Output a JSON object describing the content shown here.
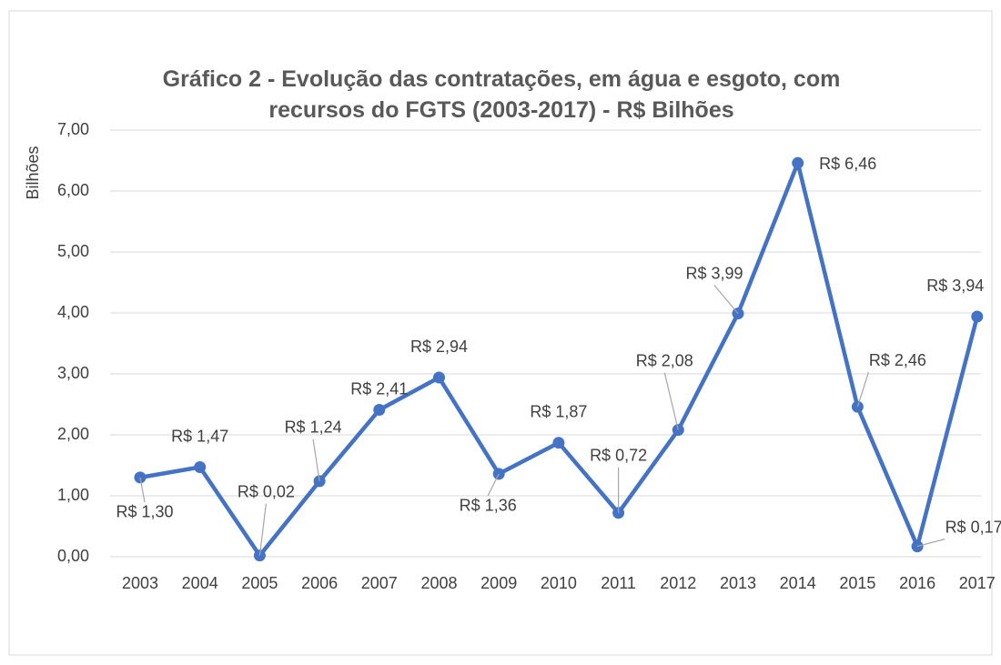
{
  "chart_data": {
    "type": "line",
    "title": "Gráfico 2 - Evolução das contratações, em água e esgoto, com recursos do FGTS (2003-2017) - R$ Bilhões",
    "y_label": "Bilhões",
    "categories": [
      "2003",
      "2004",
      "2005",
      "2006",
      "2007",
      "2008",
      "2009",
      "2010",
      "2011",
      "2012",
      "2013",
      "2014",
      "2015",
      "2016",
      "2017"
    ],
    "series": [
      {
        "name": "Contratações",
        "color": "#4472c4",
        "values": [
          1.3,
          1.47,
          0.02,
          1.24,
          2.41,
          2.94,
          1.36,
          1.87,
          0.72,
          2.08,
          3.99,
          6.46,
          2.46,
          0.17,
          3.94
        ],
        "value_labels": [
          "R$ 1,30",
          "R$ 1,47",
          "R$ 0,02",
          "R$ 1,24",
          "R$ 2,41",
          "R$ 2,94",
          "R$ 1,36",
          "R$ 1,87",
          "R$ 0,72",
          "R$ 2,08",
          "R$ 3,99",
          "R$ 6,46",
          "R$ 2,46",
          "R$ 0,17",
          "R$ 3,94"
        ]
      }
    ],
    "ylim": [
      0,
      7
    ],
    "yticks": [
      {
        "value": 0,
        "label": "0,00"
      },
      {
        "value": 1,
        "label": "1,00"
      },
      {
        "value": 2,
        "label": "2,00"
      },
      {
        "value": 3,
        "label": "3,00"
      },
      {
        "value": 4,
        "label": "4,00"
      },
      {
        "value": 5,
        "label": "5,00"
      },
      {
        "value": 6,
        "label": "6,00"
      },
      {
        "value": 7,
        "label": "7,00"
      }
    ],
    "grid": true
  }
}
